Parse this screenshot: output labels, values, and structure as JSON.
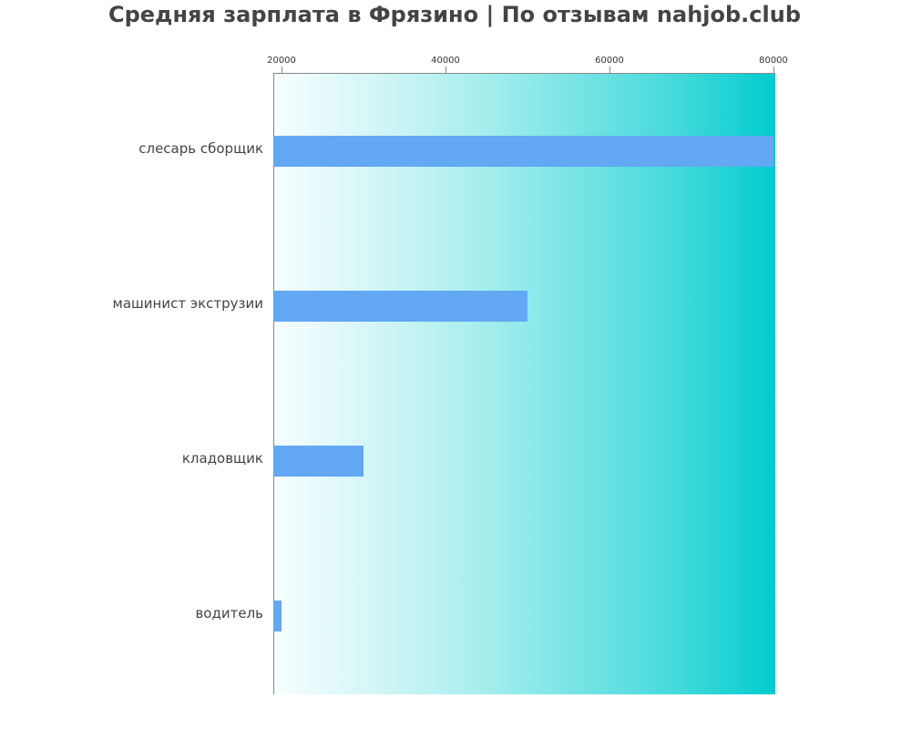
{
  "title": "Средняя зарплата в Фрязино | По отзывам nahjob.club",
  "axis": {
    "ticks": [
      {
        "label": "20000",
        "value": 20000
      },
      {
        "label": "40000",
        "value": 40000
      },
      {
        "label": "60000",
        "value": 60000
      },
      {
        "label": "80000",
        "value": 80000
      }
    ]
  },
  "bars": [
    {
      "label": "слесарь сборщик",
      "value": 80000
    },
    {
      "label": "машинист экструзии",
      "value": 50000
    },
    {
      "label": "кладовщик",
      "value": 30000
    },
    {
      "label": "водитель",
      "value": 20000
    }
  ],
  "colors": {
    "bar": "#62a8f2",
    "gradient_start": "#f7fefe",
    "gradient_end": "#00cbcd",
    "title": "#444444"
  },
  "chart_data": {
    "type": "bar",
    "orientation": "horizontal",
    "title": "Средняя зарплата в Фрязино | По отзывам nahjob.club",
    "categories": [
      "слесарь сборщик",
      "машинист экструзии",
      "кладовщик",
      "водитель"
    ],
    "values": [
      80000,
      50000,
      30000,
      20000
    ],
    "xlabel": "",
    "ylabel": "",
    "xlim": [
      19000,
      80000
    ],
    "x_ticks": [
      20000,
      40000,
      60000,
      80000
    ],
    "x_axis_position": "top",
    "grid": false,
    "legend": null
  }
}
